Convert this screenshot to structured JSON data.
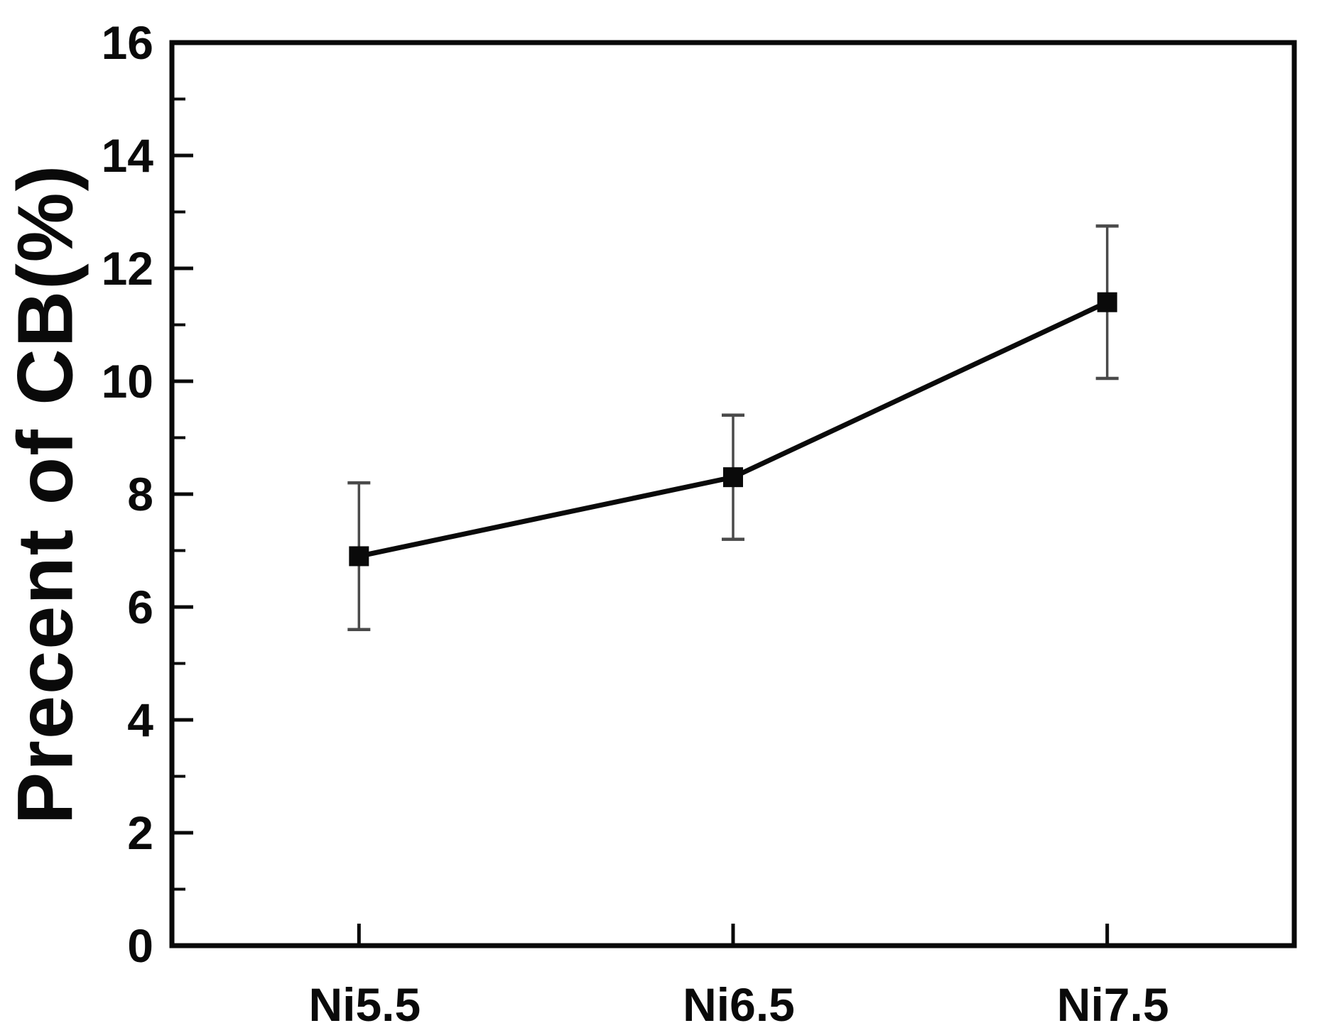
{
  "figure": {
    "background": "#ffffff"
  },
  "chart_data": {
    "type": "line",
    "title": "",
    "xlabel": "",
    "ylabel": "Precent of CB(%)",
    "categories": [
      "Ni5.5",
      "Ni6.5",
      "Ni7.5"
    ],
    "series": [
      {
        "name": "Percent of CB",
        "values": [
          6.9,
          8.3,
          11.4
        ],
        "err_lower": [
          5.6,
          7.2,
          10.05
        ],
        "err_upper": [
          8.2,
          9.4,
          12.75
        ]
      }
    ],
    "ylim": [
      0,
      16
    ],
    "ytick_step": 2,
    "yminor_step": 1,
    "ytick_labels": [
      "0",
      "2",
      "4",
      "6",
      "8",
      "10",
      "12",
      "14",
      "16"
    ],
    "grid": false,
    "legend": "none",
    "marker": "square",
    "colors": {
      "line": "#0a0a0a",
      "marker": "#0a0a0a",
      "error_bar": "#4a4a4a",
      "axis": "#0a0a0a",
      "text": "#0a0a0a",
      "background": "#ffffff"
    }
  }
}
